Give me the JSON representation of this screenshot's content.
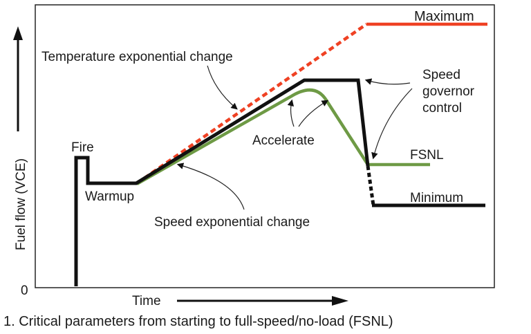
{
  "axes": {
    "y_label": "Fuel flow (VCE)",
    "x_label": "Time",
    "origin_label": "0"
  },
  "labels": {
    "fire": "Fire",
    "warmup": "Warmup",
    "maximum": "Maximum",
    "temperature": "Temperature exponential change",
    "speed_exp": "Speed exponential change",
    "accelerate": "Accelerate",
    "governor_1": "Speed",
    "governor_2": "governor",
    "governor_3": "control",
    "fsnl": "FSNL",
    "minimum": "Minimum"
  },
  "caption": "1. Critical parameters from starting to full-speed/no-load (FSNL)",
  "colors": {
    "fuel_flow_line": "#111111",
    "temperature_line": "#ef4123",
    "speed_line": "#6e9a45"
  }
}
